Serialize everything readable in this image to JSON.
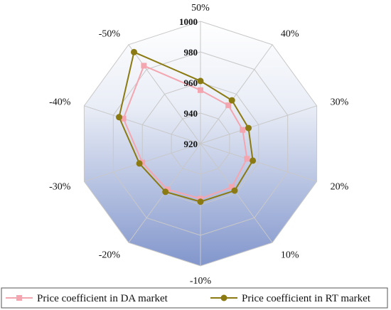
{
  "chart_data": {
    "type": "radar",
    "categories": [
      "50%",
      "40%",
      "30%",
      "20%",
      "10%",
      "-10%",
      "-20%",
      "-30%",
      "-40%",
      "-50%"
    ],
    "rlim": [
      920,
      1000
    ],
    "ticks": [
      "920",
      "940",
      "960",
      "980",
      "1000"
    ],
    "series": [
      {
        "name": "Price coefficient in DA market",
        "color": "#f4a6b0",
        "marker": "square",
        "values": [
          955,
          951,
          949,
          952,
          955,
          956,
          957,
          960,
          973,
          983
        ]
      },
      {
        "name": "Price coefficient in RT market",
        "color": "#8b7a12",
        "marker": "circle",
        "values": [
          961,
          955,
          953,
          956,
          958,
          958,
          959,
          962,
          976,
          994
        ]
      }
    ],
    "grid": true,
    "legend": "bottom"
  }
}
